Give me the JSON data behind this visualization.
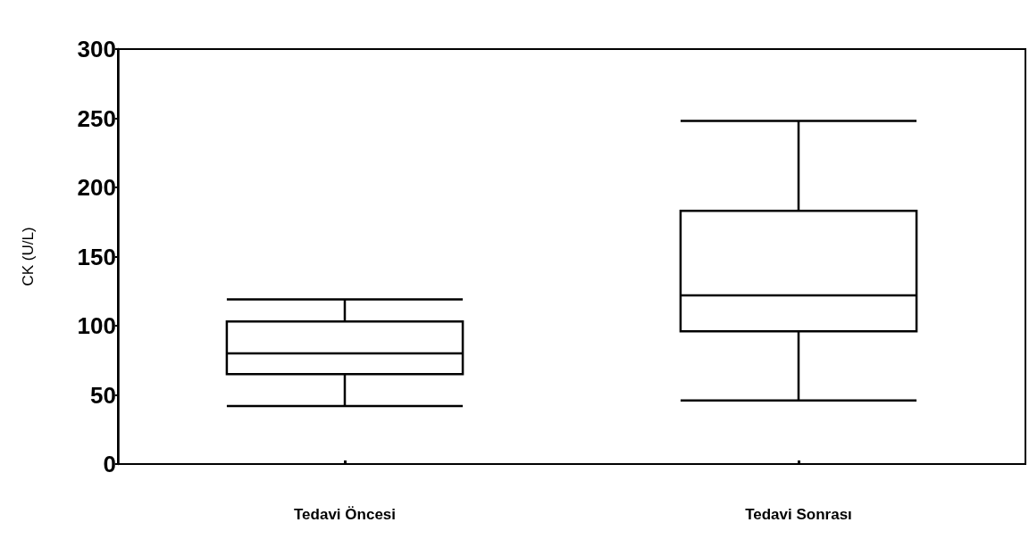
{
  "chart_data": {
    "type": "box",
    "ylabel": "CK (U/L)",
    "categories": [
      "Tedavi Öncesi",
      "Tedavi Sonrası"
    ],
    "boxes": [
      {
        "low": 42,
        "q1": 65,
        "median": 80,
        "q3": 103,
        "high": 119
      },
      {
        "low": 46,
        "q1": 96,
        "median": 122,
        "q3": 183,
        "high": 248
      }
    ],
    "color": "#000000",
    "ylim": [
      0,
      300
    ],
    "yticks": [
      0,
      50,
      100,
      150,
      200,
      250,
      300
    ],
    "grid": false
  }
}
